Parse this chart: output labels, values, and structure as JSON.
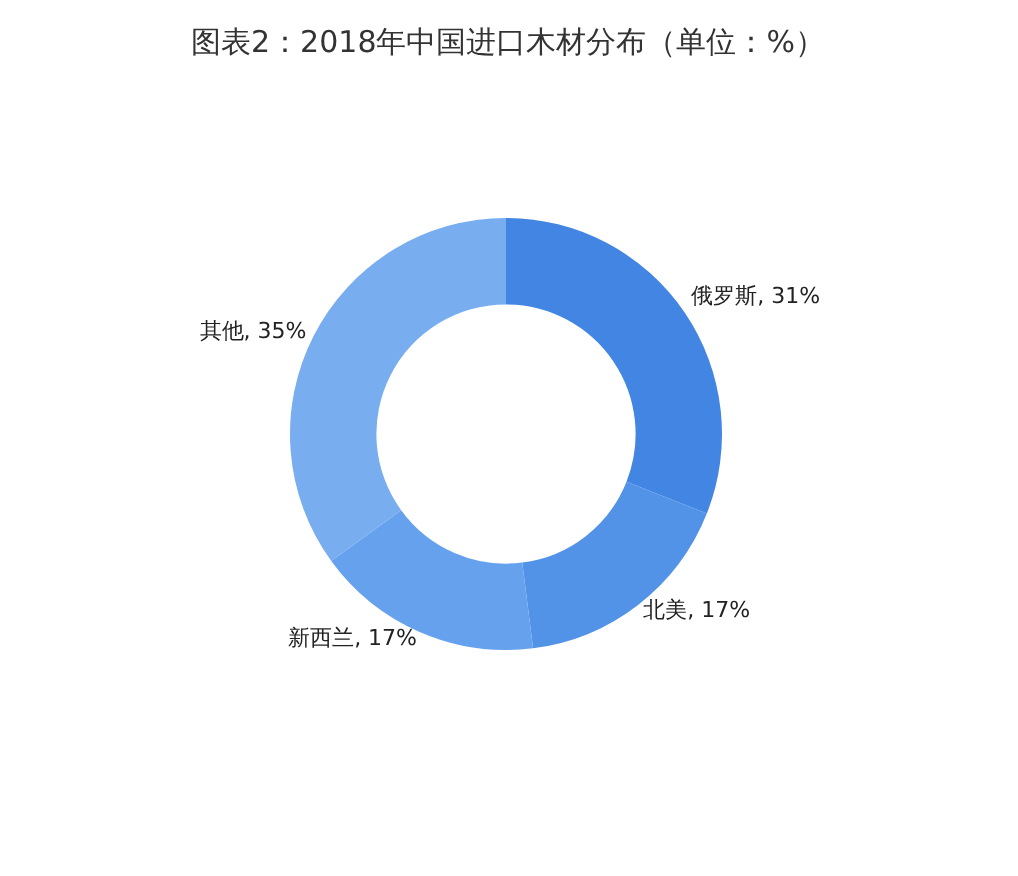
{
  "chart_data": {
    "type": "donut",
    "title": "图表2：2018年中国进口木材分布（单位：%）",
    "categories": [
      "俄罗斯",
      "北美",
      "新西兰",
      "其他"
    ],
    "values": [
      31,
      17,
      17,
      35
    ],
    "colors": [
      "#4285e3",
      "#5293e7",
      "#66a1ee",
      "#78adef"
    ],
    "value_labels": [
      "31%",
      "17%",
      "17%",
      "35%"
    ],
    "legend": false
  }
}
